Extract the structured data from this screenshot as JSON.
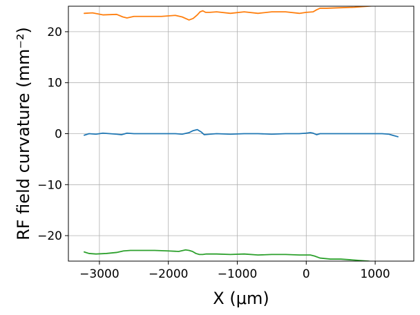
{
  "chart_data": {
    "type": "line",
    "xlabel": "X (μm)",
    "ylabel": "RF field curvature (mm⁻²)",
    "xlim": [
      -3450,
      1560
    ],
    "ylim": [
      -25,
      25
    ],
    "xticks": [
      -3000,
      -2000,
      -1000,
      0,
      1000
    ],
    "xtick_labels": [
      "−3000",
      "−2000",
      "−1000",
      "0",
      "1000"
    ],
    "yticks": [
      -20,
      -10,
      0,
      10,
      20
    ],
    "ytick_labels": [
      "−20",
      "−10",
      "0",
      "10",
      "20"
    ],
    "grid": true,
    "series": [
      {
        "color": "#1f77b4",
        "x": [
          -3220,
          -3150,
          -3050,
          -2950,
          -2850,
          -2750,
          -2680,
          -2600,
          -2500,
          -2300,
          -2100,
          -1900,
          -1800,
          -1700,
          -1640,
          -1580,
          -1520,
          -1480,
          -1400,
          -1300,
          -1100,
          -900,
          -700,
          -500,
          -300,
          -100,
          0,
          60,
          100,
          150,
          200,
          300,
          500,
          700,
          900,
          1100,
          1200,
          1250,
          1330
        ],
        "values": [
          -0.3,
          0.0,
          -0.1,
          0.1,
          0.0,
          -0.1,
          -0.2,
          0.1,
          0.0,
          0.0,
          0.0,
          0.0,
          -0.1,
          0.2,
          0.6,
          0.8,
          0.3,
          -0.2,
          -0.1,
          0.0,
          -0.1,
          0.0,
          0.0,
          -0.1,
          0.0,
          0.0,
          0.1,
          0.2,
          0.1,
          -0.2,
          0.0,
          0.0,
          0.0,
          0.0,
          0.0,
          0.0,
          -0.1,
          -0.3,
          -0.6
        ]
      },
      {
        "color": "#ff7f0e",
        "x": [
          -3220,
          -3100,
          -2950,
          -2750,
          -2660,
          -2600,
          -2500,
          -2300,
          -2100,
          -1900,
          -1800,
          -1700,
          -1640,
          -1580,
          -1540,
          -1500,
          -1460,
          -1400,
          -1300,
          -1100,
          -900,
          -700,
          -500,
          -300,
          -100,
          0,
          100,
          150,
          200,
          300,
          500,
          700,
          900,
          1000
        ],
        "values": [
          23.6,
          23.7,
          23.3,
          23.4,
          22.9,
          22.7,
          23.0,
          23.0,
          23.0,
          23.2,
          22.9,
          22.3,
          22.6,
          23.3,
          23.9,
          24.1,
          23.8,
          23.8,
          23.9,
          23.6,
          23.9,
          23.6,
          23.9,
          23.9,
          23.6,
          23.8,
          23.9,
          24.3,
          24.6,
          24.6,
          24.7,
          24.8,
          25.0,
          25.1
        ]
      },
      {
        "color": "#2ca02c",
        "x": [
          -3220,
          -3150,
          -3050,
          -2900,
          -2750,
          -2650,
          -2550,
          -2400,
          -2200,
          -2000,
          -1850,
          -1750,
          -1700,
          -1650,
          -1600,
          -1550,
          -1500,
          -1450,
          -1300,
          -1100,
          -900,
          -700,
          -500,
          -300,
          -100,
          0,
          60,
          120,
          200,
          350,
          500,
          700,
          900,
          1000
        ],
        "values": [
          -23.2,
          -23.5,
          -23.6,
          -23.5,
          -23.3,
          -23.0,
          -22.9,
          -22.9,
          -22.9,
          -23.0,
          -23.1,
          -22.8,
          -22.9,
          -23.1,
          -23.5,
          -23.7,
          -23.7,
          -23.6,
          -23.6,
          -23.7,
          -23.6,
          -23.8,
          -23.7,
          -23.7,
          -23.8,
          -23.8,
          -23.8,
          -24.0,
          -24.4,
          -24.6,
          -24.6,
          -24.8,
          -25.0,
          -25.2
        ]
      }
    ]
  }
}
